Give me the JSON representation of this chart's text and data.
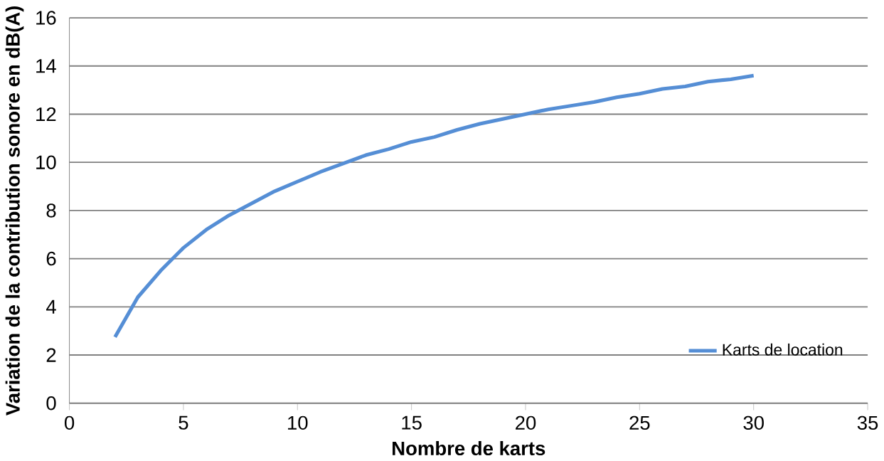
{
  "chart_data": {
    "type": "line",
    "xlabel": "Nombre de karts",
    "ylabel": "Variation de la contribution sonore en dB(A)",
    "x": [
      2,
      3,
      4,
      5,
      6,
      7,
      8,
      9,
      10,
      11,
      12,
      13,
      14,
      15,
      16,
      17,
      18,
      19,
      20,
      21,
      22,
      23,
      24,
      25,
      26,
      27,
      28,
      29,
      30
    ],
    "series": [
      {
        "name": "Karts de location",
        "color": "#558ed5",
        "values": [
          2.75,
          4.4,
          5.5,
          6.45,
          7.2,
          7.8,
          8.3,
          8.8,
          9.2,
          9.6,
          9.95,
          10.3,
          10.55,
          10.85,
          11.05,
          11.35,
          11.6,
          11.8,
          12.0,
          12.2,
          12.35,
          12.5,
          12.7,
          12.85,
          13.05,
          13.15,
          13.35,
          13.45,
          13.6
        ]
      }
    ],
    "xlim": [
      0,
      35
    ],
    "xticks": [
      0,
      5,
      10,
      15,
      20,
      25,
      30,
      35
    ],
    "ylim": [
      0,
      16
    ],
    "yticks": [
      0,
      2,
      4,
      6,
      8,
      10,
      12,
      14,
      16
    ],
    "grid": "y",
    "legend": "bottom right",
    "marker": "none",
    "line_style": "solid"
  }
}
